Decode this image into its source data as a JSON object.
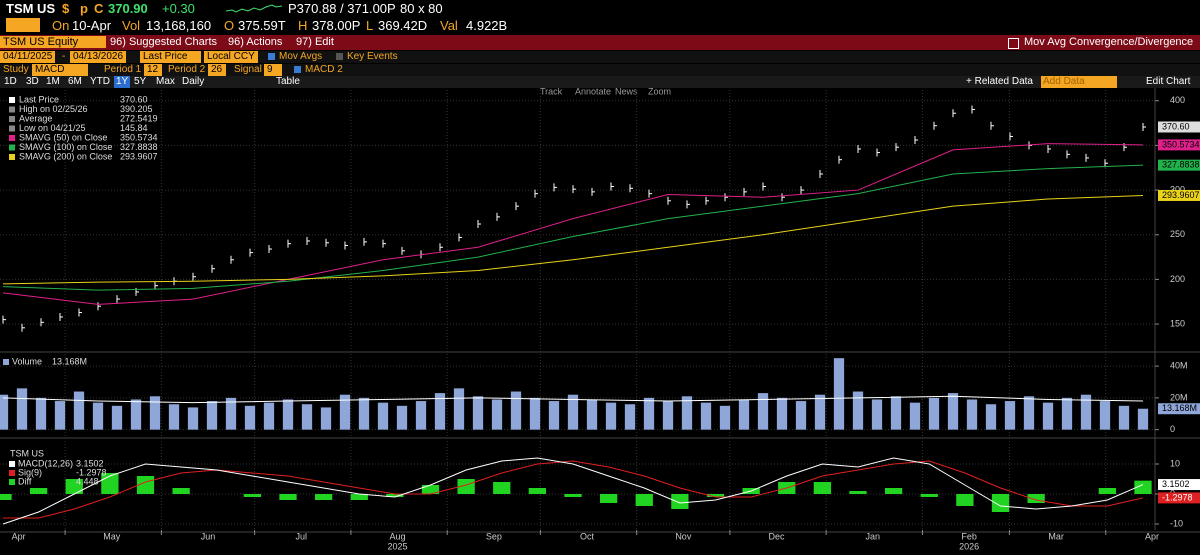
{
  "header": {
    "ticker": "TSM US",
    "currency": "$",
    "p": "p",
    "c": "C",
    "price": "370.90",
    "change": "+0.30",
    "quote": "P370.88 / 371.00P",
    "size": "80 x 80",
    "on": "On",
    "date": "10-Apr",
    "vol_label": "Vol",
    "vol": "13,168,160",
    "o_label": "O",
    "open": "375.59T",
    "h_label": "H",
    "high": "378.00P",
    "l_label": "L",
    "low": "369.42D",
    "val_label": "Val",
    "val": "4.922B"
  },
  "menu": {
    "security": "TSM US Equity",
    "items": [
      "96) Suggested Charts",
      "96) Actions",
      "97) Edit"
    ],
    "title": "Mov Avg Convergence/Divergence"
  },
  "controls": {
    "start": "04/11/2025",
    "dash": "-",
    "end": "04/13/2026",
    "field": "Last Price",
    "currency": "Local CCY",
    "mov_avgs": "Mov Avgs",
    "key_events": "Key Events",
    "study_label": "Study",
    "study": "MACD",
    "period1_label": "Period 1",
    "period1": "12",
    "period2_label": "Period 2",
    "period2": "26",
    "signal_label": "Signal",
    "signal": "9",
    "macd2": "MACD 2",
    "ranges": [
      "1D",
      "3D",
      "1M",
      "6M",
      "YTD",
      "1Y",
      "5Y",
      "Max"
    ],
    "frequency": "Daily",
    "table": "Table",
    "related": "+ Related Data",
    "add_data": "Add Data",
    "edit_chart": "Edit Chart"
  },
  "chart_tools": [
    "Track",
    "Annotate",
    "News",
    "Zoom"
  ],
  "chart_data": [
    {
      "type": "ohlc",
      "xlim": [
        "2025-04-11",
        "2026-04-13"
      ],
      "ylim": [
        121,
        412
      ],
      "yticks": [
        150,
        200,
        250,
        300,
        350,
        400
      ],
      "grid": true,
      "series": [
        {
          "name": "Last Price",
          "color": "#ffffff",
          "last_label": "370.60",
          "values": [
            155,
            145.84,
            152,
            158,
            163,
            170,
            178,
            186,
            193,
            198,
            203,
            212,
            222,
            230,
            234,
            240,
            243,
            241,
            238,
            242,
            240,
            232,
            228,
            236,
            247,
            262,
            270,
            282,
            296,
            303,
            301,
            298,
            304,
            302,
            296,
            288,
            284,
            288,
            292,
            298,
            304,
            292,
            300,
            318,
            334,
            346,
            342,
            348,
            356,
            372,
            386,
            390.205,
            372,
            360,
            350,
            346,
            340,
            336,
            330,
            348,
            370.6
          ]
        },
        {
          "name": "SMAVG (50)  on Close",
          "color": "#e0208a",
          "values": [
            185,
            172,
            178,
            200,
            222,
            236,
            268,
            295,
            292,
            300,
            345,
            352,
            350.5734
          ]
        },
        {
          "name": "SMAVG (100)  on Close",
          "color": "#22b24c",
          "values": [
            192,
            188,
            190,
            198,
            210,
            225,
            248,
            268,
            282,
            296,
            318,
            324,
            327.8838
          ]
        },
        {
          "name": "SMAVG (200)  on Close",
          "color": "#e8d21a",
          "values": [
            195,
            197,
            198,
            200,
            204,
            210,
            222,
            236,
            250,
            266,
            282,
            290,
            293.9607
          ]
        }
      ],
      "stats": [
        {
          "name": "High on 02/25/26",
          "value": 390.205
        },
        {
          "name": "Average",
          "value": 272.5419
        },
        {
          "name": "Low on 04/21/25",
          "value": 145.84
        }
      ]
    },
    {
      "type": "bar",
      "ylim": [
        -4,
        47
      ],
      "yticks": [
        0,
        {
          "value": 20,
          "label": "20M"
        },
        {
          "value": 40,
          "label": "40M"
        }
      ],
      "series": [
        {
          "name": "Volume",
          "color": "#8ea6d8",
          "last_label": "13.168M",
          "values": [
            22,
            26,
            20,
            18,
            24,
            17,
            15,
            19,
            21,
            16,
            14,
            18,
            20,
            15,
            17,
            19,
            16,
            14,
            22,
            20,
            17,
            15,
            18,
            23,
            26,
            21,
            19,
            24,
            20,
            18,
            22,
            19,
            17,
            16,
            20,
            18,
            21,
            17,
            15,
            19,
            23,
            20,
            18,
            22,
            45,
            24,
            19,
            21,
            17,
            20,
            23,
            19,
            16,
            18,
            21,
            17,
            20,
            22,
            18,
            15,
            13.168
          ]
        },
        {
          "color": "#ffffff",
          "values": [
            20,
            18,
            17,
            18,
            19,
            20,
            19,
            18,
            19,
            20,
            21,
            19,
            18
          ]
        }
      ]
    },
    {
      "type": "macd",
      "title": "TSM US",
      "ylim": [
        -12,
        18
      ],
      "yticks": [
        -10,
        0,
        10
      ],
      "series": [
        {
          "name": "MACD(12,26)",
          "color": "#ffffff",
          "values": [
            -10,
            -6,
            0,
            6,
            10,
            9,
            8,
            6,
            4,
            2,
            0,
            -1,
            3,
            8,
            11,
            12,
            10,
            6,
            2,
            -3,
            -2,
            1,
            6,
            10,
            9,
            12,
            10,
            3,
            -4,
            -5,
            -4,
            -2,
            3.1502
          ]
        },
        {
          "name": "Sig(9)",
          "color": "#e02020",
          "values": [
            -8,
            -8,
            -5,
            -1,
            4,
            7,
            8,
            7,
            6,
            4,
            2,
            0,
            0,
            3,
            7,
            10,
            11,
            9,
            6,
            2,
            -1,
            -1,
            2,
            6,
            8,
            10,
            11,
            7,
            2,
            -2,
            -4,
            -4,
            -1.2978
          ]
        },
        {
          "name": "Diff",
          "color": "#22d422",
          "values": [
            -2,
            2,
            5,
            7,
            6,
            2,
            0,
            -1,
            -2,
            -2,
            -2,
            -1,
            3,
            5,
            4,
            2,
            -1,
            -3,
            -4,
            -5,
            -1,
            2,
            4,
            4,
            1,
            2,
            -1,
            -4,
            -6,
            -3,
            0,
            2,
            4.448
          ]
        }
      ],
      "xticks": [
        {
          "value": "2025-04-01",
          "label": "Apr"
        },
        {
          "value": "2025-05-01",
          "label": "May"
        },
        {
          "value": "2025-06-01",
          "label": "Jun"
        },
        {
          "value": "2025-07-01",
          "label": "Jul"
        },
        {
          "value": "2025-08-01",
          "label": "Aug"
        },
        {
          "value": "2025-09-01",
          "label": "Sep"
        },
        {
          "value": "2025-10-01",
          "label": "Oct"
        },
        {
          "value": "2025-11-01",
          "label": "Nov"
        },
        {
          "value": "2025-12-01",
          "label": "Dec"
        },
        {
          "value": "2026-01-01",
          "label": "Jan"
        },
        {
          "value": "2026-02-01",
          "label": "Feb"
        },
        {
          "value": "2026-03-01",
          "label": "Mar"
        },
        {
          "value": "2026-04-01",
          "label": "Apr"
        }
      ],
      "years": [
        {
          "value": "2025-08-01",
          "label": "2025"
        },
        {
          "value": "2026-02-01",
          "label": "2026"
        }
      ]
    }
  ]
}
